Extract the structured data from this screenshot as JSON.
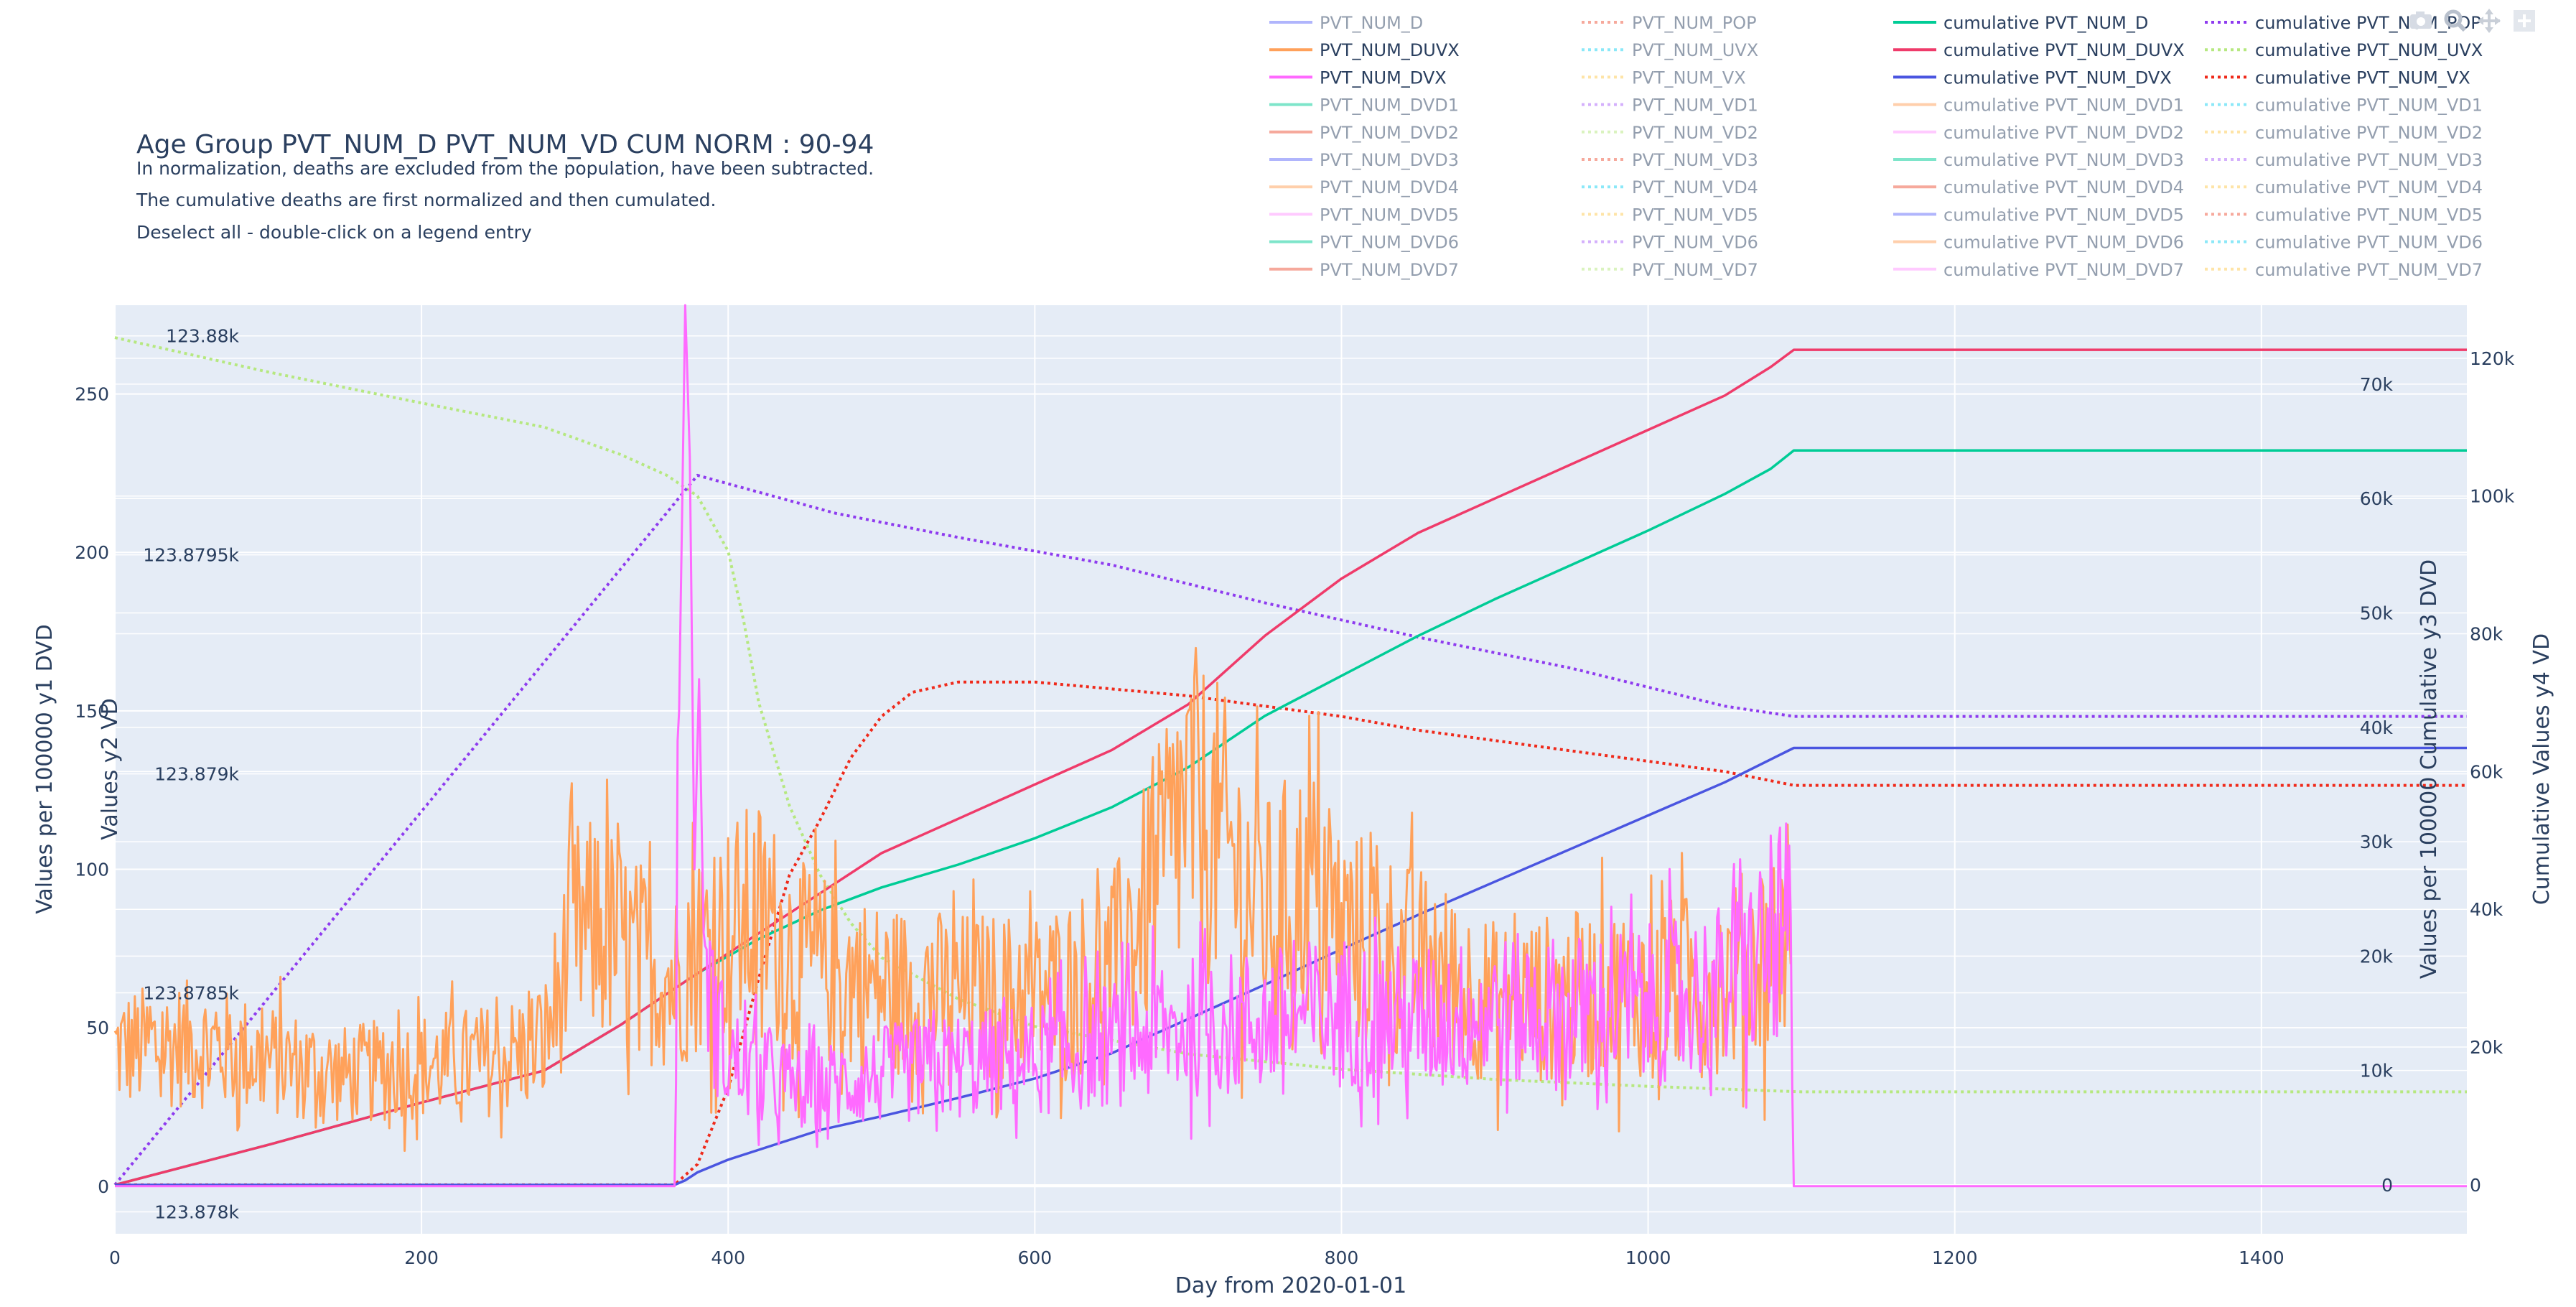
{
  "title": "Age Group PVT_NUM_D PVT_NUM_VD CUM NORM : 90-94",
  "notes": [
    "In normalization, deaths are excluded from the population, have been subtracted.",
    "The cumulative deaths are first normalized and then cumulated.",
    "Deselect all - double-click on a legend entry"
  ],
  "modebar": [
    "camera-icon",
    "zoom-icon",
    "pan-icon",
    "autoscale-icon"
  ],
  "colors": {
    "plot_bg": "#e5ecf6",
    "grid": "#ffffff",
    "text": "#2a3f5f"
  },
  "legend": {
    "columns": [
      [
        {
          "label": "PVT_NUM_D",
          "color": "#636efa",
          "dash": "solid",
          "active": false
        },
        {
          "label": "PVT_NUM_DUVX",
          "color": "#FFA15A",
          "dash": "solid",
          "active": true
        },
        {
          "label": "PVT_NUM_DVX",
          "color": "#FF6AFF",
          "dash": "solid",
          "active": true
        },
        {
          "label": "PVT_NUM_DVD1",
          "color": "#00cc96",
          "dash": "solid",
          "active": false
        },
        {
          "label": "PVT_NUM_DVD2",
          "color": "#EF553B",
          "dash": "solid",
          "active": false
        },
        {
          "label": "PVT_NUM_DVD3",
          "color": "#636efa",
          "dash": "solid",
          "active": false
        },
        {
          "label": "PVT_NUM_DVD4",
          "color": "#FFA15A",
          "dash": "solid",
          "active": false
        },
        {
          "label": "PVT_NUM_DVD5",
          "color": "#FF97FF",
          "dash": "solid",
          "active": false
        },
        {
          "label": "PVT_NUM_DVD6",
          "color": "#00cc96",
          "dash": "solid",
          "active": false
        },
        {
          "label": "PVT_NUM_DVD7",
          "color": "#EF553B",
          "dash": "solid",
          "active": false
        }
      ],
      [
        {
          "label": "PVT_NUM_POP",
          "color": "#EF553B",
          "dash": "dot",
          "active": false
        },
        {
          "label": "PVT_NUM_UVX",
          "color": "#19d3f3",
          "dash": "dot",
          "active": false
        },
        {
          "label": "PVT_NUM_VX",
          "color": "#FECB52",
          "dash": "dot",
          "active": false
        },
        {
          "label": "PVT_NUM_VD1",
          "color": "#AB63FA",
          "dash": "dot",
          "active": false
        },
        {
          "label": "PVT_NUM_VD2",
          "color": "#B6E880",
          "dash": "dot",
          "active": false
        },
        {
          "label": "PVT_NUM_VD3",
          "color": "#EF553B",
          "dash": "dot",
          "active": false
        },
        {
          "label": "PVT_NUM_VD4",
          "color": "#19d3f3",
          "dash": "dot",
          "active": false
        },
        {
          "label": "PVT_NUM_VD5",
          "color": "#FECB52",
          "dash": "dot",
          "active": false
        },
        {
          "label": "PVT_NUM_VD6",
          "color": "#AB63FA",
          "dash": "dot",
          "active": false
        },
        {
          "label": "PVT_NUM_VD7",
          "color": "#B6E880",
          "dash": "dot",
          "active": false
        }
      ],
      [
        {
          "label": "cumulative PVT_NUM_D",
          "color": "#00cc96",
          "dash": "solid",
          "active": true
        },
        {
          "label": "cumulative PVT_NUM_DUVX",
          "color": "#EF3B6A",
          "dash": "solid",
          "active": true
        },
        {
          "label": "cumulative PVT_NUM_DVX",
          "color": "#4A55E0",
          "dash": "solid",
          "active": true
        },
        {
          "label": "cumulative PVT_NUM_DVD1",
          "color": "#FFA15A",
          "dash": "solid",
          "active": false
        },
        {
          "label": "cumulative PVT_NUM_DVD2",
          "color": "#FF97FF",
          "dash": "solid",
          "active": false
        },
        {
          "label": "cumulative PVT_NUM_DVD3",
          "color": "#00cc96",
          "dash": "solid",
          "active": false
        },
        {
          "label": "cumulative PVT_NUM_DVD4",
          "color": "#EF553B",
          "dash": "solid",
          "active": false
        },
        {
          "label": "cumulative PVT_NUM_DVD5",
          "color": "#636efa",
          "dash": "solid",
          "active": false
        },
        {
          "label": "cumulative PVT_NUM_DVD6",
          "color": "#FFA15A",
          "dash": "solid",
          "active": false
        },
        {
          "label": "cumulative PVT_NUM_DVD7",
          "color": "#FF97FF",
          "dash": "solid",
          "active": false
        }
      ],
      [
        {
          "label": "cumulative PVT_NUM_POP",
          "color": "#8E3BEF",
          "dash": "dot",
          "active": true
        },
        {
          "label": "cumulative PVT_NUM_UVX",
          "color": "#B6E880",
          "dash": "dot",
          "active": true
        },
        {
          "label": "cumulative PVT_NUM_VX",
          "color": "#EF2A1B",
          "dash": "dot",
          "active": true
        },
        {
          "label": "cumulative PVT_NUM_VD1",
          "color": "#19d3f3",
          "dash": "dot",
          "active": false
        },
        {
          "label": "cumulative PVT_NUM_VD2",
          "color": "#FECB52",
          "dash": "dot",
          "active": false
        },
        {
          "label": "cumulative PVT_NUM_VD3",
          "color": "#AB63FA",
          "dash": "dot",
          "active": false
        },
        {
          "label": "cumulative PVT_NUM_VD4",
          "color": "#FECB52",
          "dash": "dot",
          "active": false
        },
        {
          "label": "cumulative PVT_NUM_VD5",
          "color": "#EF553B",
          "dash": "dot",
          "active": false
        },
        {
          "label": "cumulative PVT_NUM_VD6",
          "color": "#19d3f3",
          "dash": "dot",
          "active": false
        },
        {
          "label": "cumulative PVT_NUM_VD7",
          "color": "#FECB52",
          "dash": "dot",
          "active": false
        }
      ]
    ]
  },
  "chart_data": {
    "type": "line",
    "title": "Age Group PVT_NUM_D PVT_NUM_VD CUM NORM : 90-94",
    "xlabel": "Day from 2020-01-01",
    "xlim": [
      0,
      1534
    ],
    "x_ticks": [
      0,
      200,
      400,
      600,
      800,
      1000,
      1200,
      1400
    ],
    "grid": true,
    "legend_position": "top-right",
    "axes": {
      "y1": {
        "label": "Values per 100000 y1 DVD",
        "range": [
          -15,
          278
        ],
        "ticks": [
          0,
          50,
          100,
          150,
          200,
          250
        ],
        "tick_labels": [
          "0",
          "50",
          "100",
          "150",
          "200",
          "250"
        ]
      },
      "y2": {
        "label": "Values y2 VD",
        "range": [
          123.87795,
          123.88007
        ],
        "ticks": [
          123.878,
          123.8785,
          123.879,
          123.8795,
          123.88
        ],
        "tick_labels": [
          "123.878k",
          "123.8785k",
          "123.879k",
          "123.8795k",
          "123.88k"
        ]
      },
      "y3": {
        "label": "Values per 100000 Cumulative y3 DVD",
        "range": [
          -4270,
          76900
        ],
        "ticks": [
          0,
          10000,
          20000,
          30000,
          40000,
          50000,
          60000,
          70000
        ],
        "tick_labels": [
          "0",
          "10k",
          "20k",
          "30k",
          "40k",
          "50k",
          "60k",
          "70k"
        ]
      },
      "y4": {
        "label": "Cumulative Values y4 VD",
        "range": [
          -7100,
          127700
        ],
        "ticks": [
          0,
          20000,
          40000,
          60000,
          80000,
          100000,
          120000
        ],
        "tick_labels": [
          "0",
          "20k",
          "40k",
          "60k",
          "80k",
          "100k",
          "120k"
        ]
      }
    },
    "series": [
      {
        "name": "PVT_NUM_DUVX",
        "axis": "y1",
        "color": "#FFA15A",
        "dash": "solid",
        "noisy": true,
        "x": [
          0,
          50,
          100,
          150,
          200,
          250,
          280,
          300,
          320,
          340,
          365,
          380,
          400,
          420,
          450,
          500,
          550,
          600,
          650,
          680,
          700,
          720,
          750,
          780,
          800,
          850,
          900,
          950,
          1000,
          1050,
          1080,
          1093
        ],
        "values": [
          43,
          45,
          40,
          35,
          38,
          40,
          45,
          80,
          80,
          72,
          65,
          75,
          80,
          85,
          70,
          62,
          60,
          60,
          68,
          95,
          120,
          110,
          85,
          95,
          80,
          70,
          58,
          60,
          62,
          65,
          75,
          85
        ]
      },
      {
        "name": "PVT_NUM_DVX",
        "axis": "y1",
        "color": "#FF6AFF",
        "dash": "solid",
        "noisy": true,
        "x": [
          0,
          365,
          368,
          372,
          375,
          378,
          381,
          384,
          390,
          400,
          420,
          450,
          500,
          550,
          600,
          650,
          700,
          750,
          800,
          850,
          900,
          950,
          1000,
          1050,
          1090,
          1093,
          1095,
          1534
        ],
        "values": [
          0,
          0,
          150,
          278,
          230,
          100,
          160,
          80,
          55,
          40,
          35,
          30,
          35,
          38,
          40,
          45,
          50,
          52,
          55,
          52,
          55,
          55,
          57,
          62,
          80,
          78,
          0,
          0
        ]
      },
      {
        "name": "cumulative PVT_NUM_D",
        "axis": "y3",
        "color": "#00cc96",
        "dash": "solid",
        "x": [
          0,
          100,
          200,
          280,
          330,
          380,
          420,
          460,
          500,
          550,
          600,
          650,
          700,
          750,
          800,
          850,
          900,
          950,
          1000,
          1050,
          1080,
          1095,
          1534
        ],
        "values": [
          0,
          3500,
          7200,
          10000,
          14000,
          18500,
          21500,
          24000,
          26000,
          28000,
          30300,
          33000,
          36500,
          41000,
          44500,
          48000,
          51200,
          54200,
          57200,
          60400,
          62600,
          64200,
          64200
        ]
      },
      {
        "name": "cumulative PVT_NUM_DUVX",
        "axis": "y3",
        "color": "#EF3B6A",
        "dash": "solid",
        "x": [
          0,
          100,
          200,
          280,
          330,
          380,
          420,
          460,
          500,
          550,
          600,
          650,
          700,
          750,
          800,
          850,
          900,
          950,
          1000,
          1050,
          1080,
          1095,
          1534
        ],
        "values": [
          0,
          3500,
          7200,
          10000,
          14000,
          18500,
          22000,
          25500,
          29000,
          32000,
          35000,
          38000,
          42000,
          48000,
          53000,
          57000,
          60000,
          63000,
          66000,
          69000,
          71500,
          73000,
          73000
        ]
      },
      {
        "name": "cumulative PVT_NUM_DVX",
        "axis": "y3",
        "color": "#4A55E0",
        "dash": "solid",
        "x": [
          0,
          365,
          372,
          380,
          400,
          460,
          500,
          550,
          600,
          650,
          700,
          750,
          800,
          850,
          900,
          950,
          1000,
          1050,
          1080,
          1095,
          1534
        ],
        "values": [
          0,
          0,
          400,
          1100,
          2200,
          4800,
          6000,
          7600,
          9300,
          11500,
          14500,
          17500,
          20600,
          23600,
          26500,
          29400,
          32300,
          35200,
          37200,
          38200,
          38200
        ]
      },
      {
        "name": "cumulative PVT_NUM_POP",
        "axis": "y4",
        "color": "#8E3BEF",
        "dash": "dot",
        "x": [
          0,
          380,
          470,
          550,
          650,
          750,
          850,
          950,
          1050,
          1095,
          1534
        ],
        "values": [
          0,
          103000,
          97500,
          94000,
          90000,
          84500,
          79500,
          75000,
          69500,
          68000,
          68000
        ]
      },
      {
        "name": "cumulative PVT_NUM_UVX",
        "axis": "y4",
        "color": "#B6E880",
        "dash": "dot",
        "x": [
          0,
          100,
          200,
          280,
          330,
          360,
          380,
          400,
          410,
          420,
          440,
          460,
          480,
          500,
          550,
          600,
          700,
          800,
          900,
          1000,
          1100,
          1534
        ],
        "values": [
          123000,
          118000,
          113500,
          110000,
          106000,
          103000,
          100000,
          92000,
          82000,
          70000,
          55000,
          45000,
          38000,
          33000,
          27000,
          23000,
          19000,
          16800,
          15300,
          14300,
          13500,
          13500
        ]
      },
      {
        "name": "cumulative PVT_NUM_VX",
        "axis": "y4",
        "color": "#EF2A1B",
        "dash": "dot",
        "x": [
          0,
          365,
          380,
          400,
          420,
          440,
          460,
          480,
          500,
          520,
          550,
          600,
          650,
          700,
          750,
          800,
          850,
          900,
          950,
          1000,
          1050,
          1095,
          1534
        ],
        "values": [
          0,
          0,
          3000,
          14000,
          30000,
          45000,
          53000,
          62000,
          68000,
          71500,
          73000,
          73000,
          72000,
          71000,
          69500,
          68000,
          66000,
          64500,
          63000,
          61500,
          60000,
          58000,
          58000
        ]
      }
    ]
  }
}
